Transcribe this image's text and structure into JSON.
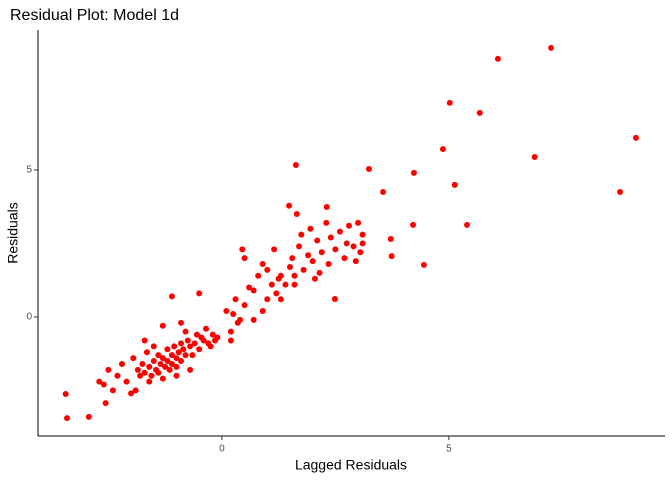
{
  "chart_data": {
    "type": "scatter",
    "title": "Residual Plot: Model 1d",
    "x_label": "Lagged Residuals",
    "y_label": "Residuals",
    "color": "#ff0000",
    "x": [
      7.25,
      6.08,
      5.02,
      5.68,
      9.12,
      6.89,
      4.87,
      1.63,
      3.24,
      4.23,
      5.13,
      3.55,
      8.77,
      1.48,
      2.31,
      4.21,
      5.4,
      3.72,
      3.74,
      4.45,
      2.49,
      -3.44,
      -3.41,
      -2.93,
      -2.56,
      -2.6,
      -2.4,
      -2.2,
      -2.1,
      -2.0,
      -1.9,
      -1.95,
      -1.85,
      -1.8,
      -1.75,
      -1.7,
      -1.65,
      -1.6,
      -1.55,
      -1.5,
      -1.45,
      -1.4,
      -1.4,
      -1.35,
      -1.3,
      -1.3,
      -1.25,
      -1.2,
      -1.2,
      -1.15,
      -1.1,
      -1.1,
      -1.05,
      -1.0,
      -1.0,
      -0.95,
      -0.9,
      -0.9,
      -0.85,
      -0.8,
      -0.8,
      -0.75,
      -0.7,
      -0.65,
      -0.6,
      -0.55,
      -0.5,
      -0.45,
      -0.4,
      -0.35,
      -0.3,
      -0.25,
      -0.2,
      -0.15,
      -0.1,
      -1.1,
      -0.5,
      -0.9,
      -1.7,
      -1.5,
      -2.3,
      -2.5,
      -2.7,
      -1.0,
      -0.7,
      -1.3,
      -1.6,
      0.1,
      0.2,
      0.3,
      0.35,
      0.4,
      0.5,
      0.5,
      0.6,
      0.7,
      0.8,
      0.9,
      1.0,
      1.0,
      1.1,
      1.15,
      1.2,
      1.3,
      1.3,
      1.4,
      0.9,
      0.7,
      0.2,
      0.45,
      0.25,
      1.5,
      1.55,
      1.6,
      1.7,
      1.75,
      1.8,
      1.9,
      1.95,
      2.0,
      2.05,
      2.1,
      2.15,
      2.2,
      2.3,
      2.35,
      2.4,
      2.5,
      2.6,
      2.7,
      2.75,
      2.8,
      2.9,
      2.95,
      3.0,
      3.1,
      3.1,
      3.05,
      1.65,
      1.6,
      1.25
    ],
    "values": [
      9.15,
      8.78,
      7.28,
      6.94,
      6.09,
      5.44,
      5.71,
      5.17,
      5.03,
      4.9,
      4.49,
      4.25,
      4.25,
      3.78,
      3.74,
      3.13,
      3.13,
      2.65,
      2.07,
      1.77,
      0.61,
      -2.62,
      -3.44,
      -3.4,
      -2.93,
      -2.3,
      -2.5,
      -1.6,
      -2.2,
      -2.6,
      -2.5,
      -1.4,
      -1.8,
      -2.0,
      -1.6,
      -1.9,
      -1.2,
      -1.7,
      -2.0,
      -1.5,
      -1.8,
      -1.3,
      -1.9,
      -1.6,
      -0.3,
      -1.4,
      -1.7,
      -1.5,
      -1.1,
      -1.8,
      -1.3,
      -1.6,
      -1.0,
      -1.4,
      -1.7,
      -1.2,
      -0.9,
      -1.5,
      -1.1,
      -1.3,
      -0.5,
      -0.8,
      -1.0,
      -1.3,
      -0.9,
      -0.6,
      -1.1,
      -0.7,
      -0.8,
      -0.4,
      -0.9,
      -1.0,
      -0.6,
      -0.8,
      -0.7,
      0.7,
      0.8,
      -0.2,
      -0.8,
      -1.0,
      -2.0,
      -1.8,
      -2.2,
      -2.0,
      -1.8,
      -2.1,
      -2.2,
      0.2,
      -0.5,
      0.6,
      -0.2,
      -0.1,
      2.0,
      0.4,
      1.0,
      -0.1,
      1.4,
      0.2,
      1.6,
      0.6,
      1.1,
      2.3,
      0.8,
      1.4,
      0.6,
      1.1,
      1.8,
      0.9,
      -0.8,
      2.3,
      0.1,
      1.7,
      2.0,
      1.4,
      2.4,
      2.8,
      1.6,
      2.1,
      3.0,
      1.9,
      1.3,
      2.6,
      1.5,
      2.2,
      3.2,
      1.8,
      2.7,
      2.3,
      2.9,
      2.0,
      2.5,
      3.1,
      2.4,
      1.9,
      3.2,
      2.5,
      2.8,
      2.2,
      3.5,
      1.1,
      1.3
    ],
    "xlim": [
      -4.05,
      9.76
    ],
    "ylim": [
      -4.05,
      9.76
    ],
    "xticks": [
      0,
      5
    ],
    "yticks": [
      0,
      5
    ],
    "grid": false
  }
}
